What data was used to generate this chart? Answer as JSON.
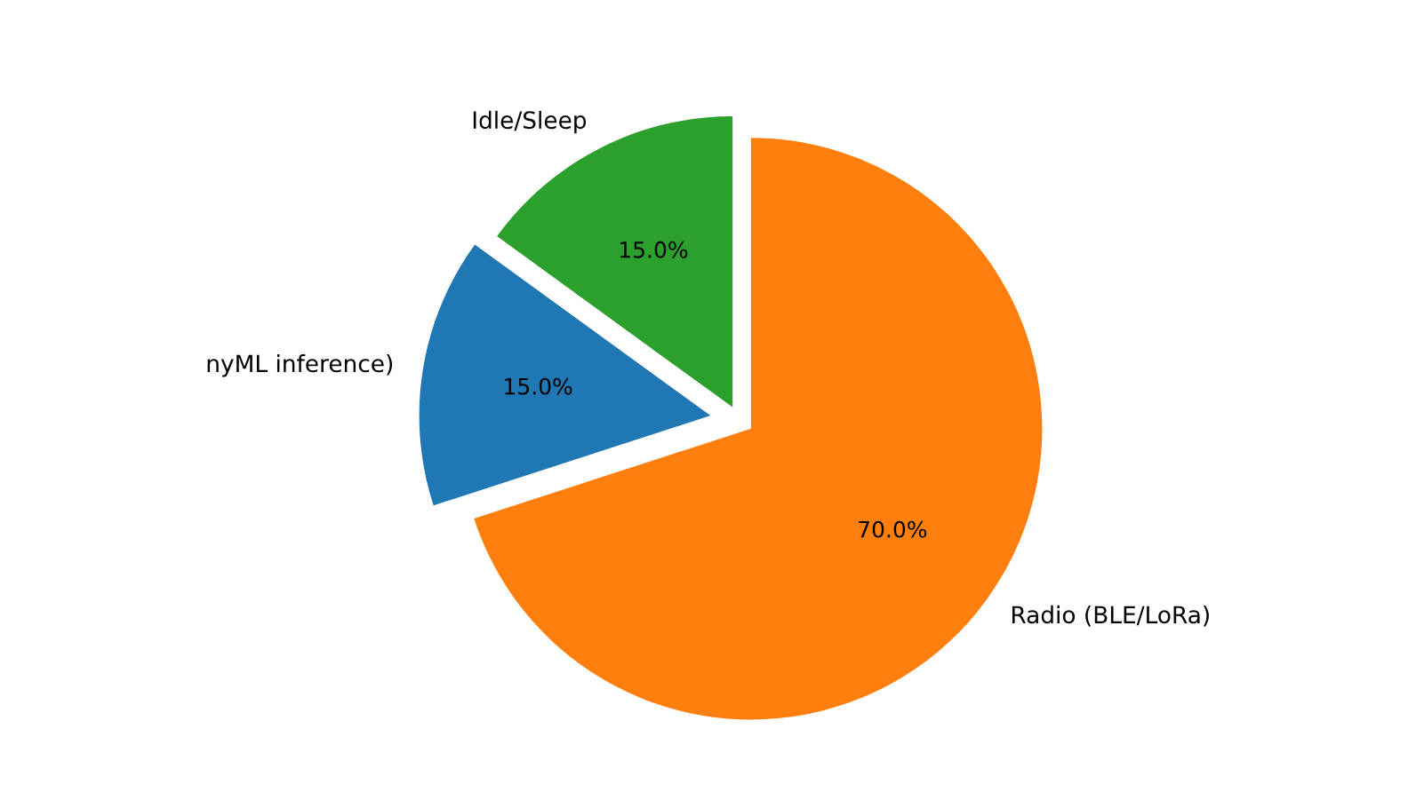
{
  "chart_data": {
    "type": "pie",
    "categories": [
      "nyML inference)",
      "Radio (BLE/LoRa)",
      "Idle/Sleep"
    ],
    "values": [
      15,
      70,
      15
    ],
    "colors": [
      "#1f77b4",
      "#ff7f0e",
      "#2ca02c"
    ],
    "value_labels": [
      "15.0%",
      "70.0%",
      "15.0%"
    ],
    "legend": false
  }
}
